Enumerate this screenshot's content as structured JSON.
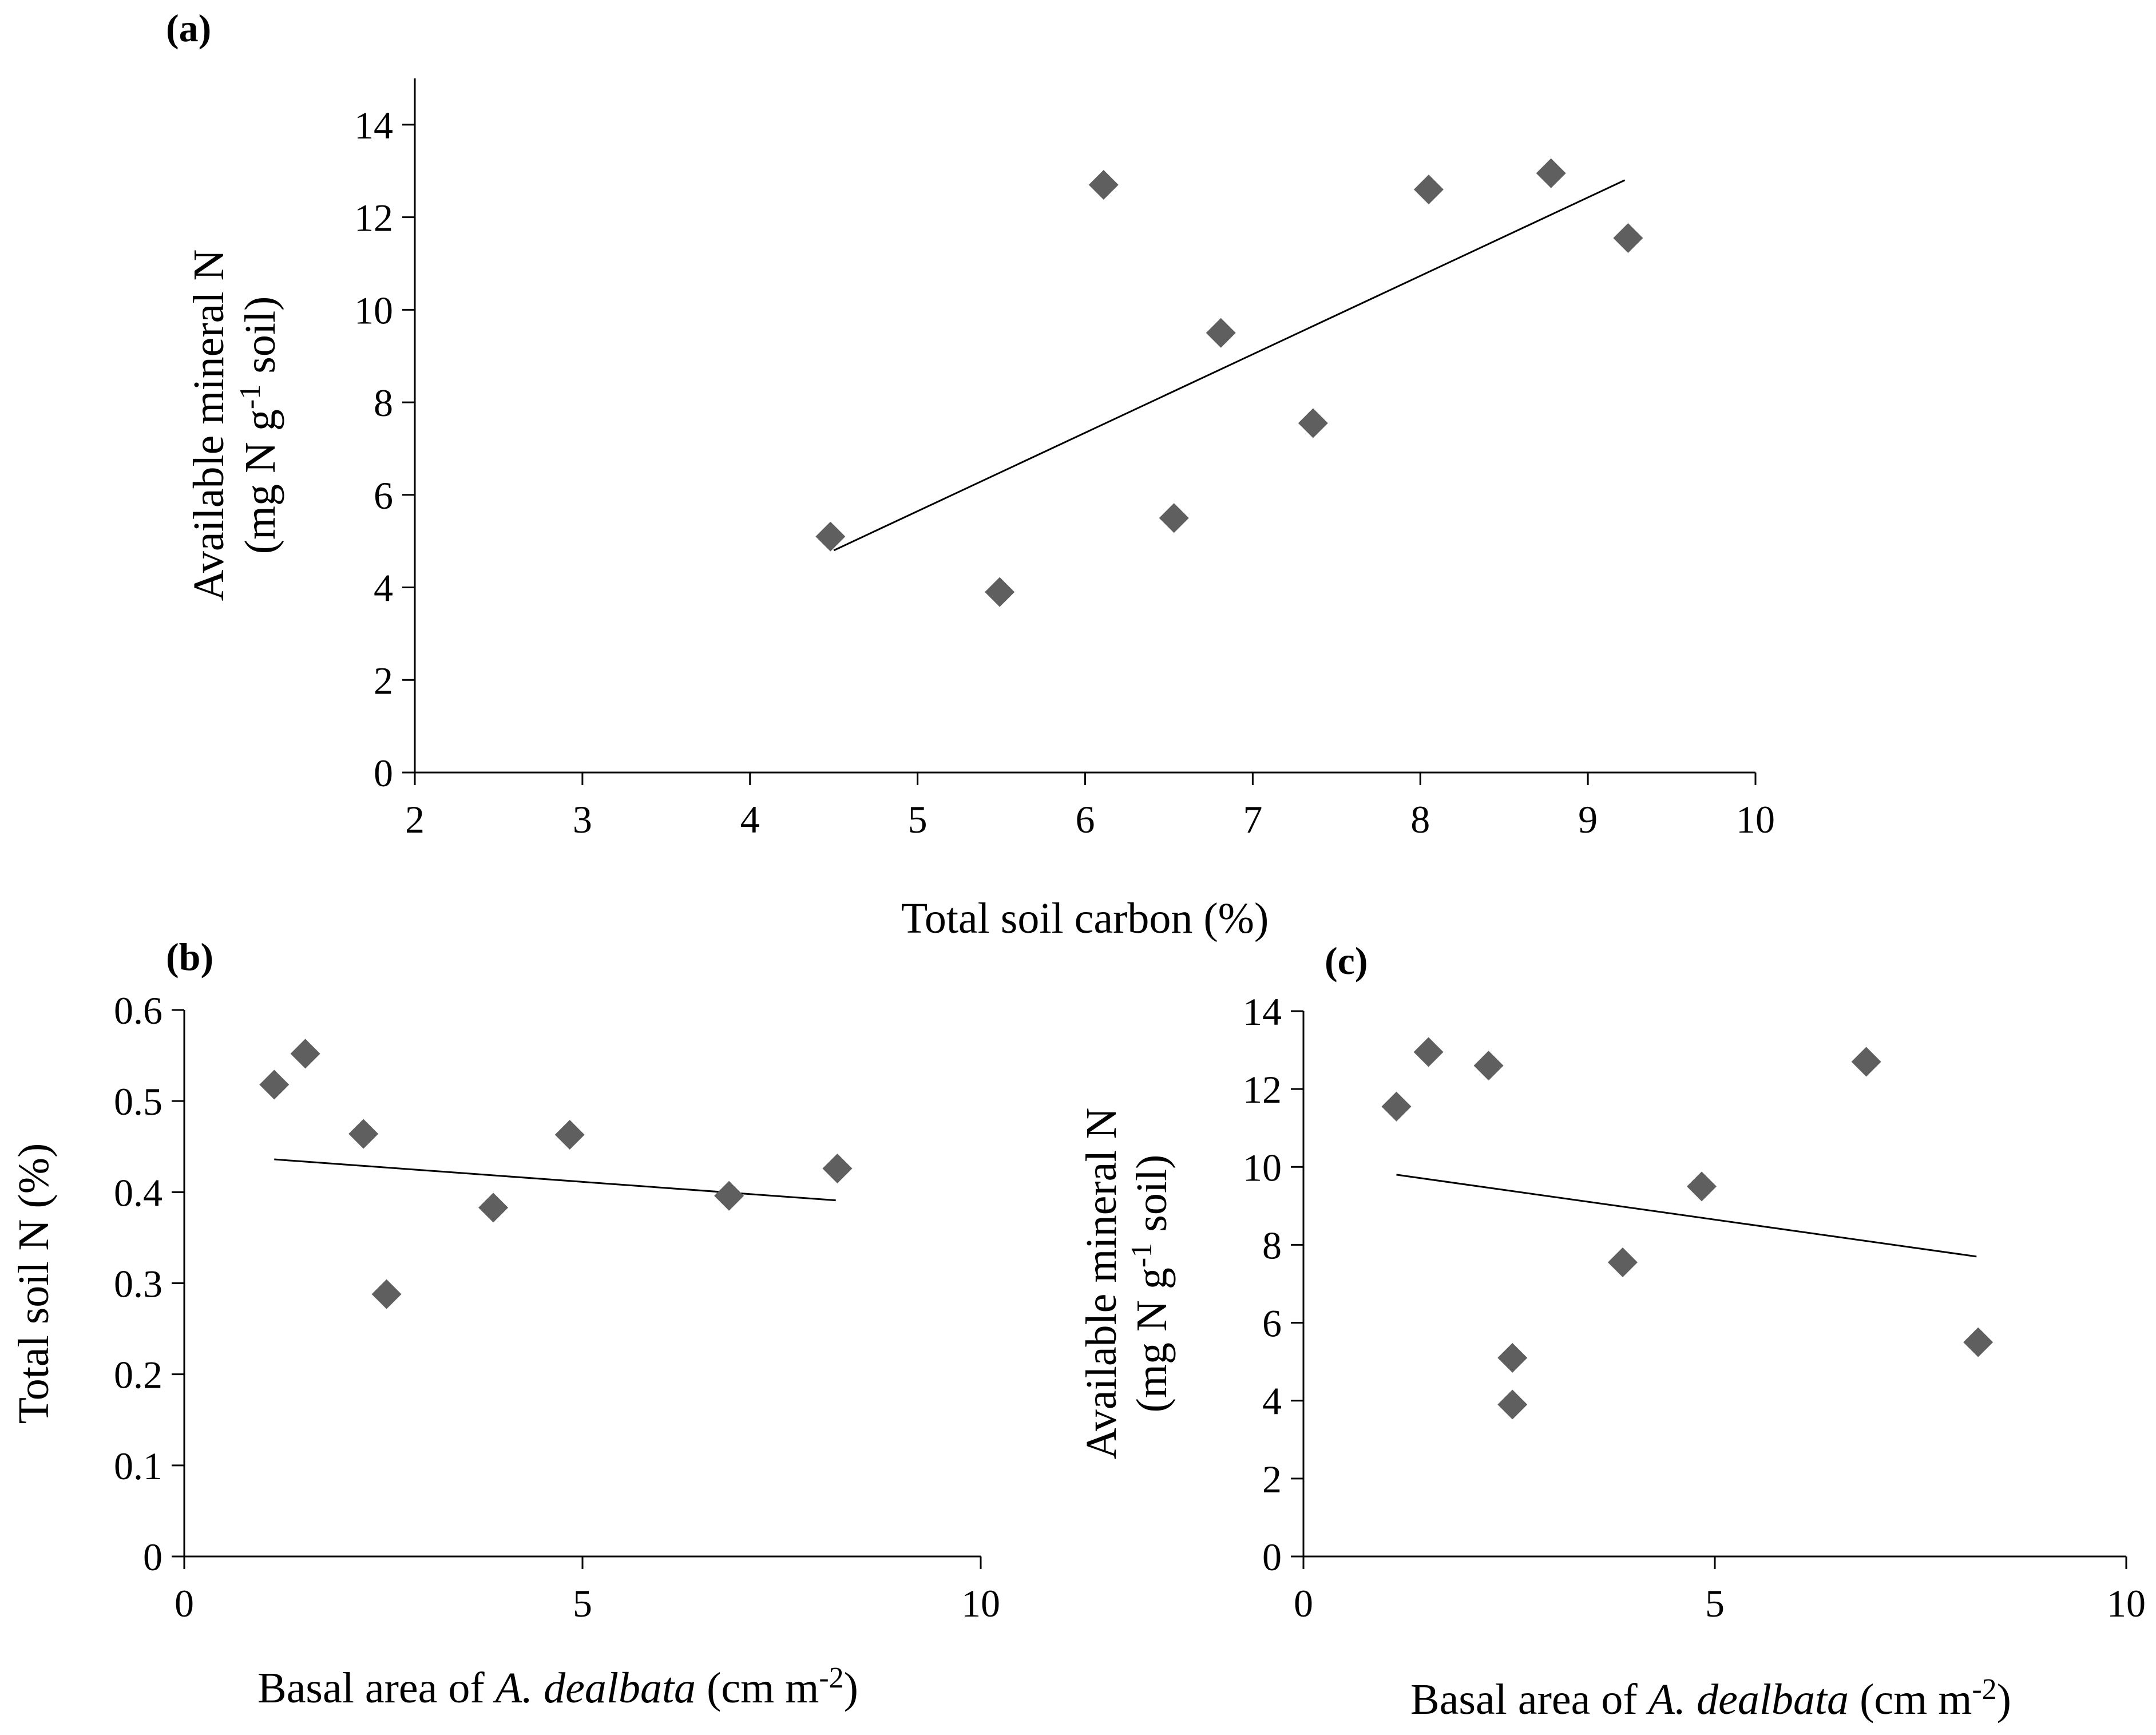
{
  "panel_labels": [
    "(a)",
    "(b)",
    "(c)"
  ],
  "chart_data": [
    {
      "id": "a",
      "type": "scatter",
      "label": "(a)",
      "xlabel": "Total soil carbon (%)",
      "ylabel_line1": "Available mineral N",
      "ylabel_line2_pre": "(mg N g",
      "ylabel_line2_sup": "-1",
      "ylabel_line2_post": " soil)",
      "xlim": [
        2,
        10
      ],
      "ylim": [
        0,
        15
      ],
      "xticks": [
        2,
        3,
        4,
        5,
        6,
        7,
        8,
        9,
        10
      ],
      "yticks": [
        0,
        2,
        4,
        6,
        8,
        10,
        12,
        14
      ],
      "xtick_labels": [
        "2",
        "3",
        "4",
        "5",
        "6",
        "7",
        "8",
        "9",
        "10"
      ],
      "ytick_labels": [
        "0",
        "2",
        "4",
        "6",
        "8",
        "10",
        "12",
        "14"
      ],
      "x": [
        4.48,
        5.49,
        6.11,
        6.53,
        6.81,
        7.36,
        8.05,
        8.78,
        9.24
      ],
      "y": [
        5.1,
        3.9,
        12.7,
        5.5,
        9.5,
        7.55,
        12.6,
        12.95,
        11.55
      ],
      "trendline": {
        "x": [
          4.5,
          9.22
        ],
        "y": [
          4.8,
          12.8
        ]
      },
      "marker_color": "#5f5f5f"
    },
    {
      "id": "b",
      "type": "scatter",
      "label": "(b)",
      "xlabel_pre": "Basal area of ",
      "xlabel_italic": "A. dealbata",
      "xlabel_mid": " (cm m",
      "xlabel_sup": "-2",
      "xlabel_post": ")",
      "ylabel": "Total soil N (%)",
      "xlim": [
        0,
        10
      ],
      "ylim": [
        0,
        0.6
      ],
      "xticks": [
        0,
        5,
        10
      ],
      "yticks": [
        0,
        0.1,
        0.2,
        0.3,
        0.4,
        0.5,
        0.6
      ],
      "xtick_labels": [
        "0",
        "5",
        "10"
      ],
      "ytick_labels": [
        "0",
        "0.1",
        "0.2",
        "0.3",
        "0.4",
        "0.5",
        "0.6"
      ],
      "x": [
        1.13,
        1.52,
        2.25,
        2.54,
        3.88,
        4.84,
        6.84,
        8.2
      ],
      "y": [
        0.518,
        0.552,
        0.464,
        0.288,
        0.383,
        0.463,
        0.396,
        0.426
      ],
      "trendline": {
        "x": [
          1.13,
          8.18
        ],
        "y": [
          0.436,
          0.391
        ]
      },
      "marker_color": "#5f5f5f"
    },
    {
      "id": "c",
      "type": "scatter",
      "label": "(c)",
      "xlabel_pre": "Basal area of ",
      "xlabel_italic": "A. dealbata",
      "xlabel_mid": " (cm m",
      "xlabel_sup": "-2",
      "xlabel_post": ")",
      "ylabel_line1": "Available mineral N",
      "ylabel_line2_pre": "(mg N g",
      "ylabel_line2_sup": "-1",
      "ylabel_line2_post": " soil)",
      "xlim": [
        0,
        10
      ],
      "ylim": [
        0,
        14
      ],
      "xticks": [
        0,
        5,
        10
      ],
      "yticks": [
        0,
        2,
        4,
        6,
        8,
        10,
        12,
        14
      ],
      "xtick_labels": [
        "0",
        "5",
        "10"
      ],
      "ytick_labels": [
        "0",
        "2",
        "4",
        "6",
        "8",
        "10",
        "12",
        "14"
      ],
      "x": [
        1.13,
        1.52,
        2.25,
        2.54,
        2.54,
        3.88,
        4.84,
        6.84,
        8.2
      ],
      "y": [
        11.55,
        12.95,
        12.6,
        5.1,
        3.9,
        7.55,
        9.5,
        12.7,
        5.5
      ],
      "trendline": {
        "x": [
          1.13,
          8.18
        ],
        "y": [
          9.8,
          7.7
        ]
      },
      "marker_color": "#5f5f5f"
    }
  ]
}
